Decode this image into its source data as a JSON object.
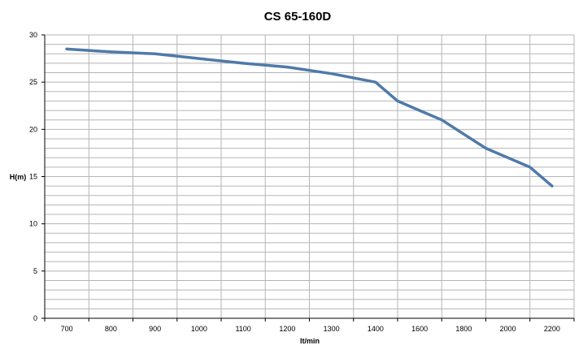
{
  "chart_data": {
    "type": "line",
    "title": "CS 65-160D",
    "xlabel": "lt/min",
    "ylabel": "H(m)",
    "x_ticks": [
      "700",
      "800",
      "900",
      "1000",
      "1100",
      "1200",
      "1300",
      "1400",
      "1600",
      "1800",
      "2000",
      "2200"
    ],
    "y_ticks": [
      "0",
      "5",
      "10",
      "15",
      "20",
      "25",
      "30"
    ],
    "ylim": [
      0,
      30
    ],
    "grid": true,
    "legend": "none",
    "line_color": "#4f7aa8",
    "grid_color": "#b5b5b5",
    "series": [
      {
        "x": [
          "700",
          "800",
          "900",
          "1000",
          "1100",
          "1200",
          "1300",
          "1400",
          "1500",
          "1600",
          "1700",
          "1800",
          "1900",
          "2000",
          "2100",
          "2200"
        ],
        "values": [
          28.5,
          28.2,
          28.0,
          27.5,
          27.0,
          26.6,
          25.9,
          25.0,
          23.0,
          22.0,
          21.0,
          19.5,
          18.0,
          17.0,
          16.0,
          14.0
        ]
      }
    ]
  }
}
